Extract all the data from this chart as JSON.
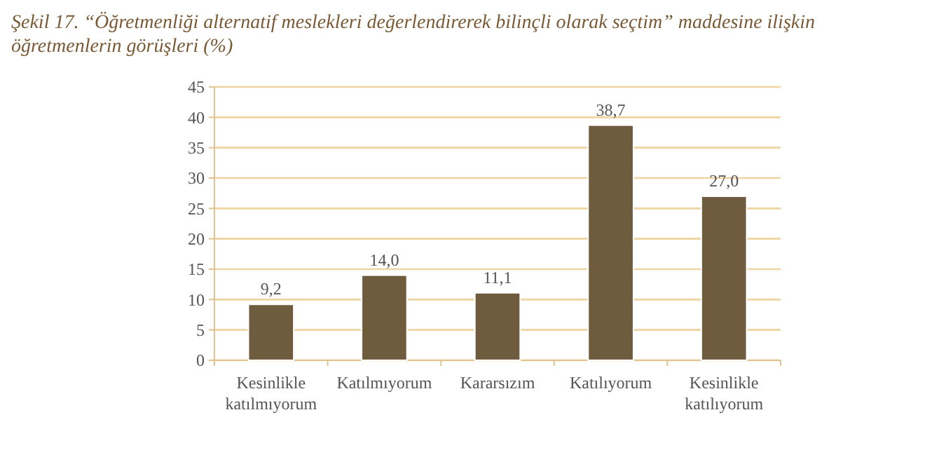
{
  "chart_data": {
    "type": "bar",
    "title": "Şekil 17. “Öğretmenliği alternatif meslekleri değerlendirerek bilinçli olarak seçtim” maddesine ilişkin öğretmenlerin görüşleri (%)",
    "categories": [
      "Kesinlikle katılmıyorum",
      "Katılmıyorum",
      "Kararsızım",
      "Katılıyorum",
      "Kesinlikle katılıyorum"
    ],
    "values": [
      9.2,
      14.0,
      11.1,
      38.7,
      27.0
    ],
    "value_labels": [
      "9,2",
      "14,0",
      "11,1",
      "38,7",
      "27,0"
    ],
    "color": "#6f5b3e",
    "ylim": [
      0,
      45
    ],
    "yticks": [
      0,
      5,
      10,
      15,
      20,
      25,
      30,
      35,
      40,
      45
    ],
    "grid": "y"
  }
}
